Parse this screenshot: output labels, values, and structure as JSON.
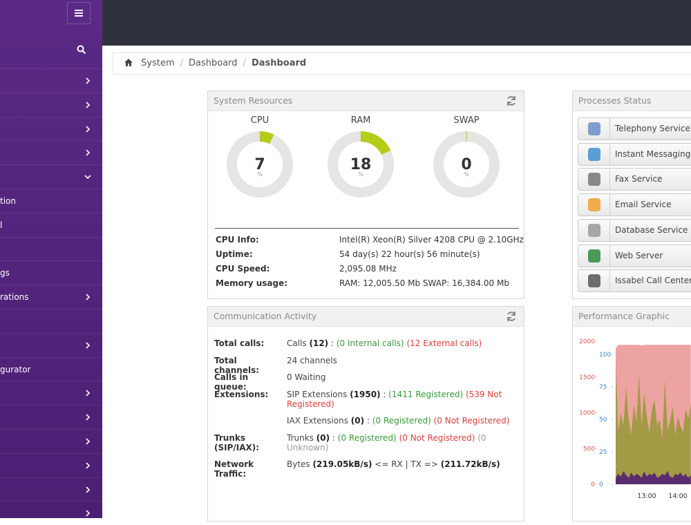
{
  "sidebar": {
    "items": [
      {
        "chevron": "right"
      },
      {
        "chevron": "right"
      },
      {
        "chevron": "right"
      },
      {
        "chevron": "right"
      },
      {
        "chevron": "down"
      },
      {
        "label": "tion"
      },
      {
        "label": "l"
      },
      {},
      {
        "label": "gs"
      },
      {
        "label": "rations",
        "chevron": "right"
      },
      {},
      {
        "chevron": "right"
      },
      {
        "label": "gurator"
      },
      {
        "chevron": "right"
      },
      {
        "chevron": "right"
      },
      {
        "chevron": "right"
      },
      {
        "chevron": "right"
      },
      {
        "chevron": "right"
      },
      {
        "chevron": "right"
      }
    ]
  },
  "breadcrumb": [
    "System",
    "Dashboard",
    "Dashboard"
  ],
  "system_resources": {
    "title": "System Resources",
    "gauge_range": [
      0,
      100
    ],
    "gauge_color": "#b5cc18",
    "gauges": [
      {
        "label": "CPU",
        "value": 7,
        "unit": "%"
      },
      {
        "label": "RAM",
        "value": 18,
        "unit": "%"
      },
      {
        "label": "SWAP",
        "value": 0,
        "unit": "%"
      }
    ],
    "info": [
      {
        "label": "CPU Info:",
        "value": "Intel(R) Xeon(R) Silver 4208 CPU @ 2.10GHz"
      },
      {
        "label": "Uptime:",
        "value": "54 day(s) 22 hour(s) 56 minute(s)"
      },
      {
        "label": "CPU Speed:",
        "value": "2,095.08 MHz"
      },
      {
        "label": "Memory usage:",
        "value": "RAM: 12,005.50 Mb SWAP: 16,384.00 Mb"
      }
    ]
  },
  "communication_activity": {
    "title": "Communication Activity",
    "rows": [
      {
        "label": "Total calls:",
        "lines": [
          [
            {
              "text": "Calls",
              "style": "plain"
            },
            {
              "text": "(12)",
              "style": "bold"
            },
            {
              "text": ":",
              "style": "plain"
            },
            {
              "text": "(0 Internal calls)",
              "style": "green"
            },
            {
              "text": "(12 External calls)",
              "style": "red"
            }
          ]
        ]
      },
      {
        "label": "Total channels:",
        "lines": [
          [
            {
              "text": "24 channels",
              "style": "plain"
            }
          ]
        ]
      },
      {
        "label": "Calls in queue:",
        "lines": [
          [
            {
              "text": "0 Waiting",
              "style": "plain"
            }
          ]
        ]
      },
      {
        "label": "Extensions:",
        "lines": [
          [
            {
              "text": "SIP Extensions",
              "style": "plain"
            },
            {
              "text": "(1950)",
              "style": "bold"
            },
            {
              "text": ":",
              "style": "plain"
            },
            {
              "text": "(1411 Registered)",
              "style": "green"
            },
            {
              "text": "(539 Not Registered)",
              "style": "red"
            }
          ],
          [
            {
              "text": "IAX Extensions",
              "style": "plain"
            },
            {
              "text": "(0)",
              "style": "bold"
            },
            {
              "text": ":",
              "style": "plain"
            },
            {
              "text": "(0 Registered)",
              "style": "green"
            },
            {
              "text": "(0 Not Registered)",
              "style": "red"
            }
          ]
        ]
      },
      {
        "label": "Trunks (SIP/IAX):",
        "lines": [
          [
            {
              "text": "Trunks",
              "style": "plain"
            },
            {
              "text": "(0)",
              "style": "bold"
            },
            {
              "text": ":",
              "style": "plain"
            },
            {
              "text": "(0 Registered)",
              "style": "green"
            },
            {
              "text": "(0 Not Registered)",
              "style": "red"
            },
            {
              "text": "(0 Unknown)",
              "style": "grey"
            }
          ]
        ]
      },
      {
        "label": "Network Traffic:",
        "lines": [
          [
            {
              "text": "Bytes",
              "style": "plain"
            },
            {
              "text": "(219.05kB/s)",
              "style": "bold"
            },
            {
              "text": "<= RX | TX =>",
              "style": "plain"
            },
            {
              "text": "(211.72kB/s)",
              "style": "bold"
            }
          ]
        ]
      }
    ]
  },
  "processes_status": {
    "title": "Processes Status",
    "items": [
      "Telephony Service",
      "Instant Messaging",
      "Fax Service",
      "Email Service",
      "Database Service",
      "Web Server",
      "Issabel Call Center"
    ]
  },
  "performance_graphic": {
    "title": "Performance Graphic",
    "chart": {
      "type": "area",
      "categories": [
        null,
        null,
        null,
        null,
        null,
        null,
        null,
        null,
        null,
        null,
        null,
        null,
        "13:00",
        null,
        null,
        null,
        null,
        null,
        null,
        null,
        null,
        null,
        null,
        null,
        "14:00",
        null,
        null,
        null,
        null,
        null
      ],
      "ylim": [
        0,
        2000
      ],
      "yticks": [
        0,
        500,
        1000,
        1500,
        2000
      ],
      "y_color": "#d9534f",
      "y2lim": [
        0,
        110
      ],
      "y2ticks": [
        0,
        25,
        50,
        75,
        100
      ],
      "y2_color": "#3a87c8",
      "series": [
        {
          "color": "#eea3a3",
          "values": [
            1900,
            1950,
            1950,
            1950,
            1950,
            1950,
            1950,
            1950,
            1950,
            1950,
            1940,
            1950,
            1950,
            1950,
            1950,
            1950,
            1950,
            1950,
            1950,
            1950,
            1950,
            1950,
            1950,
            1950,
            1950,
            1950,
            1950,
            1950,
            1950,
            1950
          ]
        },
        {
          "color": "#a39a45",
          "axis": "y2",
          "values": [
            95,
            40,
            55,
            45,
            75,
            50,
            38,
            62,
            48,
            85,
            45,
            70,
            52,
            40,
            58,
            65,
            45,
            50,
            35,
            80,
            42,
            48,
            60,
            38,
            52,
            45,
            40,
            58,
            50,
            62
          ]
        },
        {
          "color": "#5a2c6e",
          "axis": "y2",
          "values": [
            5,
            8,
            6,
            10,
            7,
            5,
            9,
            6,
            8,
            7,
            5,
            10,
            6,
            8,
            7,
            9,
            5,
            6,
            8,
            7,
            10,
            6,
            5,
            8,
            7,
            9,
            6,
            8,
            5,
            7
          ]
        }
      ]
    }
  }
}
